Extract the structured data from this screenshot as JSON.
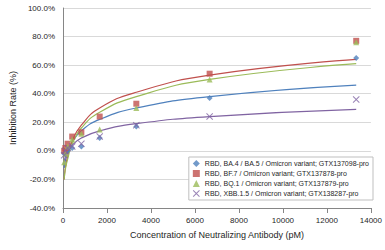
{
  "chart_data": {
    "type": "scatter",
    "x_label": "Concentration of Neutralizing Antibody (pM)",
    "y_label": "Inhibition Rate (%)",
    "x": [
      52,
      104,
      208,
      417,
      833,
      1667,
      3333,
      6667,
      13333
    ],
    "series": [
      {
        "name": "RBD, BA.4 / BA.5 / Omicron variant; GTX137098-pro",
        "color": "#4f81bd",
        "marker": "diamond",
        "values": [
          -2,
          -1,
          0,
          2,
          3,
          9,
          17,
          37,
          65
        ],
        "trend": [
          -12,
          -7,
          -1,
          6,
          14,
          22,
          30,
          38,
          46
        ]
      },
      {
        "name": "RBD, BF.7 / Omicron variant; GTX137878-pro",
        "color": "#c0504d",
        "marker": "square",
        "values": [
          0,
          2,
          5,
          10,
          13,
          24,
          33,
          54,
          77
        ],
        "trend": [
          -20,
          -12,
          -4,
          7,
          18,
          30,
          41,
          53,
          64
        ]
      },
      {
        "name": "RBD, BQ.1 / Omicron variant; GTX137879-pro",
        "color": "#9bbb59",
        "marker": "triangle",
        "values": [
          -8,
          -2,
          3,
          8,
          12,
          15,
          30,
          50,
          76
        ],
        "trend": [
          -20,
          -13,
          -6,
          5,
          16,
          27,
          38,
          50,
          61
        ]
      },
      {
        "name": "RBD, XBB.1.5 / Omicron variant; GTX138287-pro",
        "color": "#8064a2",
        "marker": "x",
        "values": [
          -3,
          0,
          2,
          3,
          5,
          10,
          18,
          24,
          36
        ],
        "trend": [
          -8,
          -4,
          -1,
          4,
          9,
          14,
          19,
          24,
          29
        ]
      }
    ],
    "xlim": [
      0,
      14000
    ],
    "xticks": [
      0,
      2000,
      4000,
      6000,
      8000,
      10000,
      12000,
      14000
    ],
    "ylim": [
      -40,
      100
    ],
    "yticks": [
      {
        "value": -40,
        "label": "-40.0%"
      },
      {
        "value": -20,
        "label": "-20.0%"
      },
      {
        "value": 0,
        "label": "0.0%"
      },
      {
        "value": 20,
        "label": "20.0%"
      },
      {
        "value": 40,
        "label": "40.0%"
      },
      {
        "value": 60,
        "label": "60.0%"
      },
      {
        "value": 80,
        "label": "80.0%"
      },
      {
        "value": 100,
        "label": "100.0%"
      }
    ],
    "grid": true,
    "legend": "lower right"
  }
}
